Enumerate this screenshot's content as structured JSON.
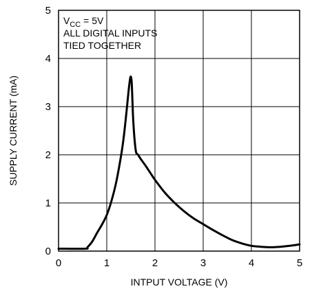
{
  "chart_data": {
    "type": "line",
    "xlabel": "INTPUT VOLTAGE (V)",
    "ylabel": "SUPPLY CURRENT (mA)",
    "xlim": [
      0,
      5
    ],
    "ylim": [
      0,
      5
    ],
    "xticks": [
      "0",
      "1",
      "2",
      "3",
      "4",
      "5"
    ],
    "yticks": [
      "0",
      "1",
      "2",
      "3",
      "4",
      "5"
    ],
    "grid": true,
    "annotation": {
      "vcc_prefix": "V",
      "vcc_subscript": "CC",
      "vcc_suffix": " = 5V",
      "line2": "ALL DIGITAL INPUTS",
      "line3": "TIED TOGETHER"
    },
    "series": [
      {
        "color": "#000000",
        "x": [
          0,
          0.55,
          0.6,
          0.7,
          0.8,
          0.9,
          1.0,
          1.1,
          1.2,
          1.3,
          1.35,
          1.4,
          1.45,
          1.48,
          1.5,
          1.52,
          1.55,
          1.6,
          1.65,
          1.7,
          1.8,
          1.9,
          2.0,
          2.2,
          2.4,
          2.6,
          2.8,
          3.0,
          3.2,
          3.4,
          3.6,
          3.8,
          4.0,
          4.2,
          4.4,
          4.6,
          4.8,
          5.0
        ],
        "y": [
          0.05,
          0.05,
          0.08,
          0.2,
          0.38,
          0.55,
          0.75,
          1.05,
          1.45,
          2.0,
          2.35,
          2.8,
          3.3,
          3.55,
          3.62,
          3.45,
          2.7,
          2.1,
          2.0,
          1.92,
          1.78,
          1.63,
          1.48,
          1.22,
          1.01,
          0.83,
          0.68,
          0.56,
          0.44,
          0.33,
          0.23,
          0.16,
          0.11,
          0.09,
          0.08,
          0.09,
          0.11,
          0.14
        ]
      }
    ]
  }
}
